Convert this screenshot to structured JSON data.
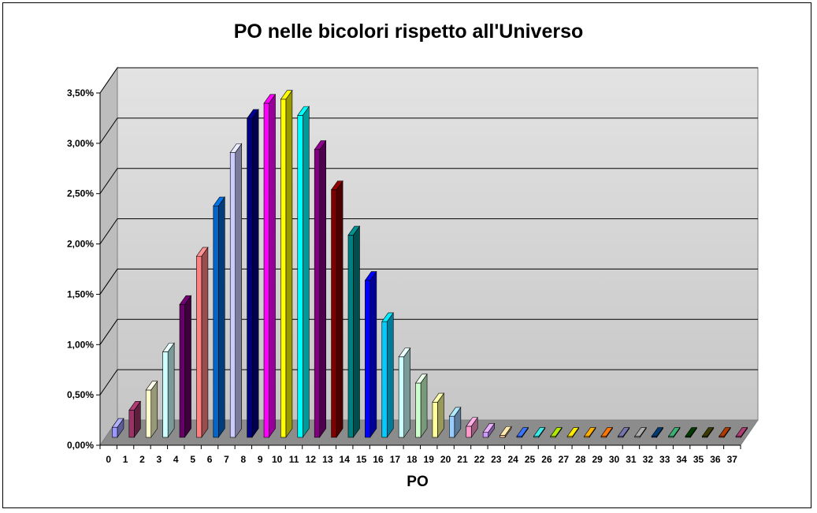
{
  "chart_data": {
    "type": "bar",
    "title": "PO nelle bicolori rispetto all'Universo",
    "xlabel": "PO",
    "ylabel": "",
    "ylim": [
      0,
      3.5
    ],
    "y_tick_labels": [
      "0,00%",
      "0,50%",
      "1,00%",
      "1,50%",
      "2,00%",
      "2,50%",
      "3,00%",
      "3,50%"
    ],
    "grid": true,
    "legend": "none",
    "categories": [
      "0",
      "1",
      "2",
      "3",
      "4",
      "5",
      "6",
      "7",
      "8",
      "9",
      "10",
      "11",
      "12",
      "13",
      "14",
      "15",
      "16",
      "17",
      "18",
      "19",
      "20",
      "21",
      "22",
      "23",
      "24",
      "25",
      "26",
      "27",
      "28",
      "29",
      "30",
      "31",
      "32",
      "33",
      "34",
      "35",
      "36",
      "37"
    ],
    "values": [
      0.1,
      0.27,
      0.47,
      0.85,
      1.32,
      1.8,
      2.3,
      2.83,
      3.17,
      3.32,
      3.36,
      3.2,
      2.86,
      2.46,
      2.01,
      1.56,
      1.15,
      0.8,
      0.54,
      0.35,
      0.21,
      0.11,
      0.05,
      0.02,
      0.01,
      0.01,
      0.01,
      0.01,
      0.01,
      0.01,
      0.01,
      0.01,
      0.01,
      0.01,
      0.01,
      0.01,
      0.01,
      0.01
    ],
    "unit": "%",
    "colors": [
      "#9999ff",
      "#993366",
      "#ffffcc",
      "#ccffff",
      "#660066",
      "#ff8080",
      "#0066cc",
      "#ccccff",
      "#000080",
      "#ff00ff",
      "#ffff00",
      "#00ffff",
      "#800080",
      "#800000",
      "#008080",
      "#0000ff",
      "#00ccff",
      "#ccffff",
      "#ccffcc",
      "#ffff99",
      "#99ccff",
      "#ff99cc",
      "#cc99ff",
      "#ffcc99",
      "#3366ff",
      "#33cccc",
      "#99cc00",
      "#ffcc00",
      "#ff9900",
      "#ff6600",
      "#666699",
      "#969696",
      "#003366",
      "#339966",
      "#003300",
      "#333300",
      "#993300",
      "#993366"
    ]
  }
}
